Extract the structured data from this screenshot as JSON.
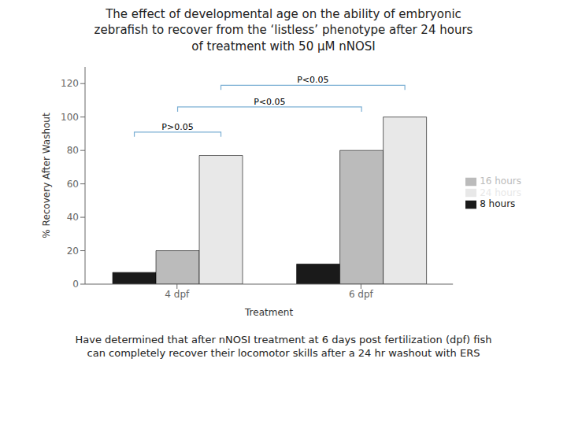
{
  "chart_data": {
    "type": "bar",
    "title": "The effect of developmental age on the ability of embryonic\nzebrafish to recover from the ‘listless’ phenotype after 24 hours\nof treatment with 50 μM nNOSI",
    "subtitle": "Have determined that after nNOSI treatment at 6 days post fertilization (dpf) fish\ncan completely recover their locomotor skills after a 24 hr washout with ERS",
    "xlabel": "Treatment",
    "ylabel": "% Recovery After Washout",
    "categories": [
      "4 dpf",
      "6 dpf"
    ],
    "series": [
      {
        "name": "8 hours",
        "color": "#1a1a1a",
        "values": [
          7,
          12
        ]
      },
      {
        "name": "16 hours",
        "color": "#bbbbbb",
        "values": [
          20,
          80
        ]
      },
      {
        "name": "24 hours",
        "color": "#e8e8e8",
        "values": [
          77,
          100
        ]
      }
    ],
    "ylim": [
      0,
      130
    ],
    "yticks": [
      0,
      20,
      40,
      60,
      80,
      100,
      120
    ],
    "grid": false,
    "legend": "right",
    "significance": [
      {
        "label": "P>0.05",
        "x1_category": "4 dpf",
        "x1_series": "8 hours",
        "x2_category": "4 dpf",
        "x2_series": "24 hours",
        "height": 91,
        "color": "#7bafd4"
      },
      {
        "label": "P<0.05",
        "x1_category": "4 dpf",
        "x1_series": "16 hours",
        "x2_category": "6 dpf",
        "x2_series": "16 hours",
        "height": 106,
        "color": "#7bafd4"
      },
      {
        "label": "P<0.05",
        "x1_category": "4 dpf",
        "x1_series": "24 hours",
        "x2_category": "6 dpf",
        "x2_series": "24 hours",
        "height": 119,
        "color": "#7bafd4"
      }
    ]
  }
}
